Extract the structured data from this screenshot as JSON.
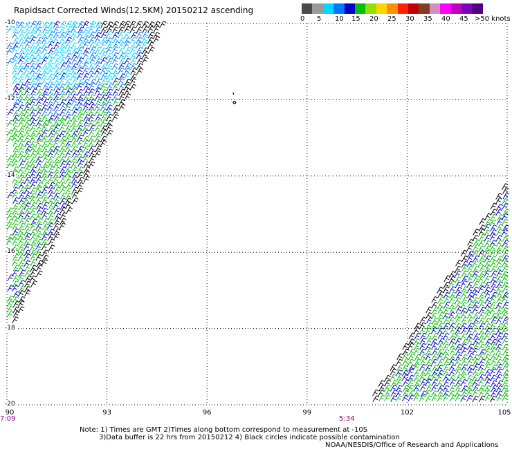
{
  "title": "Rapidsact Corrected Winds(12.5KM) 20150212 ascending",
  "scale": {
    "colors": [
      "#4a4a4a",
      "#9a9a9a",
      "#00d8ff",
      "#0078ff",
      "#0000c8",
      "#00c000",
      "#90e000",
      "#ffd400",
      "#ff9000",
      "#ff2000",
      "#c00000",
      "#804020",
      "#d090c0",
      "#ff00ff",
      "#c000c0",
      "#8000c0",
      "#500080"
    ],
    "labels": [
      "0",
      "5",
      "10",
      "15",
      "20",
      "25",
      "30",
      "35",
      "40",
      "45",
      ">50 knots"
    ]
  },
  "map": {
    "lon_min": 90,
    "lon_max": 105,
    "lat_min": -20,
    "lat_max": -10,
    "lon_ticks": [
      "90",
      "93",
      "96",
      "99",
      "102",
      "105"
    ],
    "lat_ticks": [
      "-10",
      "-12",
      "-14",
      "-16",
      "-18",
      "-20"
    ],
    "lon_values": [
      90,
      93,
      96,
      99,
      102,
      105
    ],
    "lat_values": [
      -10,
      -12,
      -14,
      -16,
      -18,
      -20
    ],
    "island_lon": 96.8,
    "island_lat": -12.1
  },
  "swaths": [
    {
      "name": "west",
      "time": "7:09",
      "corner_lons": [
        90,
        94.7,
        90
      ],
      "corner_lats": [
        -10,
        -10,
        -18.2
      ]
    },
    {
      "name": "east",
      "time": "5:34",
      "corner_lons": [
        105,
        105,
        100.8
      ],
      "corner_lats": [
        -14.1,
        -20,
        -20
      ]
    }
  ],
  "notes": {
    "line1": "Note: 1) Times are GMT 2)Times along bottom correspond to measurement at -10S",
    "line2": "3)Data buffer is 22 hrs from 20150212 4) Black circles indicate possible contamination",
    "line3": "NOAA/NESDIS/Office of Research and Applications"
  }
}
